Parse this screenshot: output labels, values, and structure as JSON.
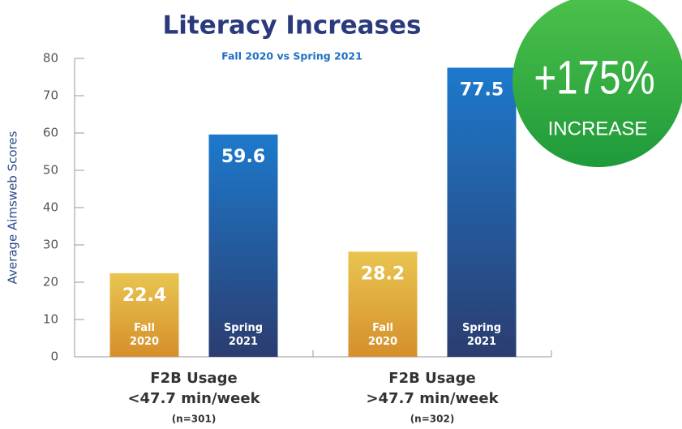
{
  "chart_data": {
    "type": "bar",
    "title": "Literacy Increases",
    "subtitle": "Fall 2020 vs Spring 2021",
    "y_label": "Average Aimsweb Scores",
    "categories": [
      [
        "F2B Usage",
        "<47.7 min/week",
        "(n=301)"
      ],
      [
        "F2B Usage",
        ">47.7 min/week",
        "(n=302)"
      ]
    ],
    "series": [
      {
        "name": "Fall 2020",
        "colors": [
          "#e9c550",
          "#d58f2b"
        ],
        "values": [
          22.4,
          28.2
        ]
      },
      {
        "name": "Spring 2021",
        "colors": [
          "#1d79cc",
          "#2b3d70"
        ],
        "values": [
          59.6,
          77.5
        ]
      }
    ],
    "ylim": [
      0,
      80
    ],
    "yticks": [
      0,
      10,
      20,
      30,
      40,
      50,
      60,
      70,
      80
    ],
    "badge": {
      "value": "+175%",
      "label": "INCREASE",
      "colors": [
        "#4cc14a",
        "#1f9a3a"
      ]
    }
  }
}
